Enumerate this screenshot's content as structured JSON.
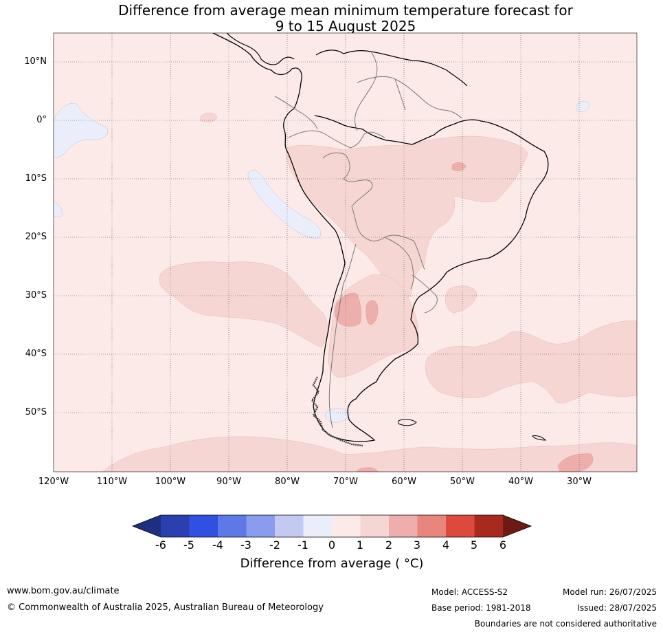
{
  "title": {
    "line1": "Difference from average mean minimum temperature forecast for",
    "line2": "9 to 15 August 2025"
  },
  "axes": {
    "lat_labels": [
      "10°N",
      "0°",
      "10°S",
      "20°S",
      "30°S",
      "40°S",
      "50°S"
    ],
    "lon_labels": [
      "120°W",
      "110°W",
      "100°W",
      "90°W",
      "80°W",
      "70°W",
      "60°W",
      "50°W",
      "40°W",
      "30°W"
    ]
  },
  "colorbar": {
    "ticks": [
      "-6",
      "-5",
      "-4",
      "-3",
      "-2",
      "-1",
      "0",
      "1",
      "2",
      "3",
      "4",
      "5",
      "6"
    ],
    "colors": [
      "#1f2f80",
      "#2a40b0",
      "#2f50e0",
      "#5e78e8",
      "#8a9cee",
      "#c2caf4",
      "#eaeefb",
      "#fbeae8",
      "#f6d6d3",
      "#eeafac",
      "#e8857c",
      "#dd4a3c",
      "#a82a1f",
      "#6e1a14"
    ],
    "label": "Difference from average ( °C)"
  },
  "footer": {
    "website": "www.bom.gov.au/climate",
    "copyright": "© Commonwealth of Australia 2025, Australian Bureau of Meteorology",
    "model": "Model: ACCESS-S2",
    "base_period": "Base period: 1981-2018",
    "model_run": "Model run: 26/07/2025",
    "issued": "Issued: 28/07/2025",
    "disclaimer": "Boundaries are not considered authoritative"
  }
}
